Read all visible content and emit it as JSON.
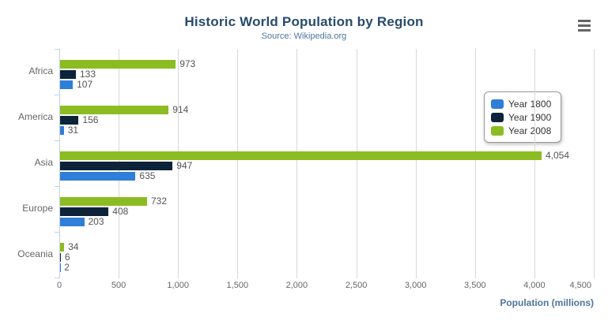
{
  "header": {
    "title": "Historic World Population by Region",
    "subtitle": "Source: Wikipedia.org"
  },
  "export_menu": {
    "icon": "hamburger-icon"
  },
  "chart_data": {
    "type": "bar",
    "orientation": "horizontal",
    "title": "Historic World Population by Region",
    "subtitle": "Source: Wikipedia.org",
    "categories": [
      "Africa",
      "America",
      "Asia",
      "Europe",
      "Oceania"
    ],
    "series": [
      {
        "name": "Year 1800",
        "color": "#2f7ed8",
        "values": [
          107,
          31,
          635,
          203,
          2
        ]
      },
      {
        "name": "Year 1900",
        "color": "#0d233a",
        "values": [
          133,
          156,
          947,
          408,
          6
        ]
      },
      {
        "name": "Year 2008",
        "color": "#8bbc21",
        "values": [
          973,
          914,
          4054,
          732,
          34
        ]
      }
    ],
    "bar_order_top_to_bottom": [
      "Year 2008",
      "Year 1900",
      "Year 1800"
    ],
    "xlabel": "Population (millions)",
    "xlim": [
      0,
      4500
    ],
    "x_ticks": [
      "0",
      "500",
      "1,000",
      "1,500",
      "2,000",
      "2,500",
      "3,000",
      "3,500",
      "4,000",
      "4,500"
    ],
    "grid": true,
    "legend_position": "right-inside",
    "data_labels": true
  },
  "colors": {
    "title": "#274b6d",
    "subtitle": "#4d759e",
    "axis_title": "#4d759e",
    "tick_label": "#666666",
    "category_label": "#666666",
    "data_label": "#545454",
    "gridline": "#d8d8d8",
    "axis_line": "#c0d0e0",
    "legend_border": "#999999",
    "menu_icon": "#666666",
    "background": "#ffffff"
  }
}
